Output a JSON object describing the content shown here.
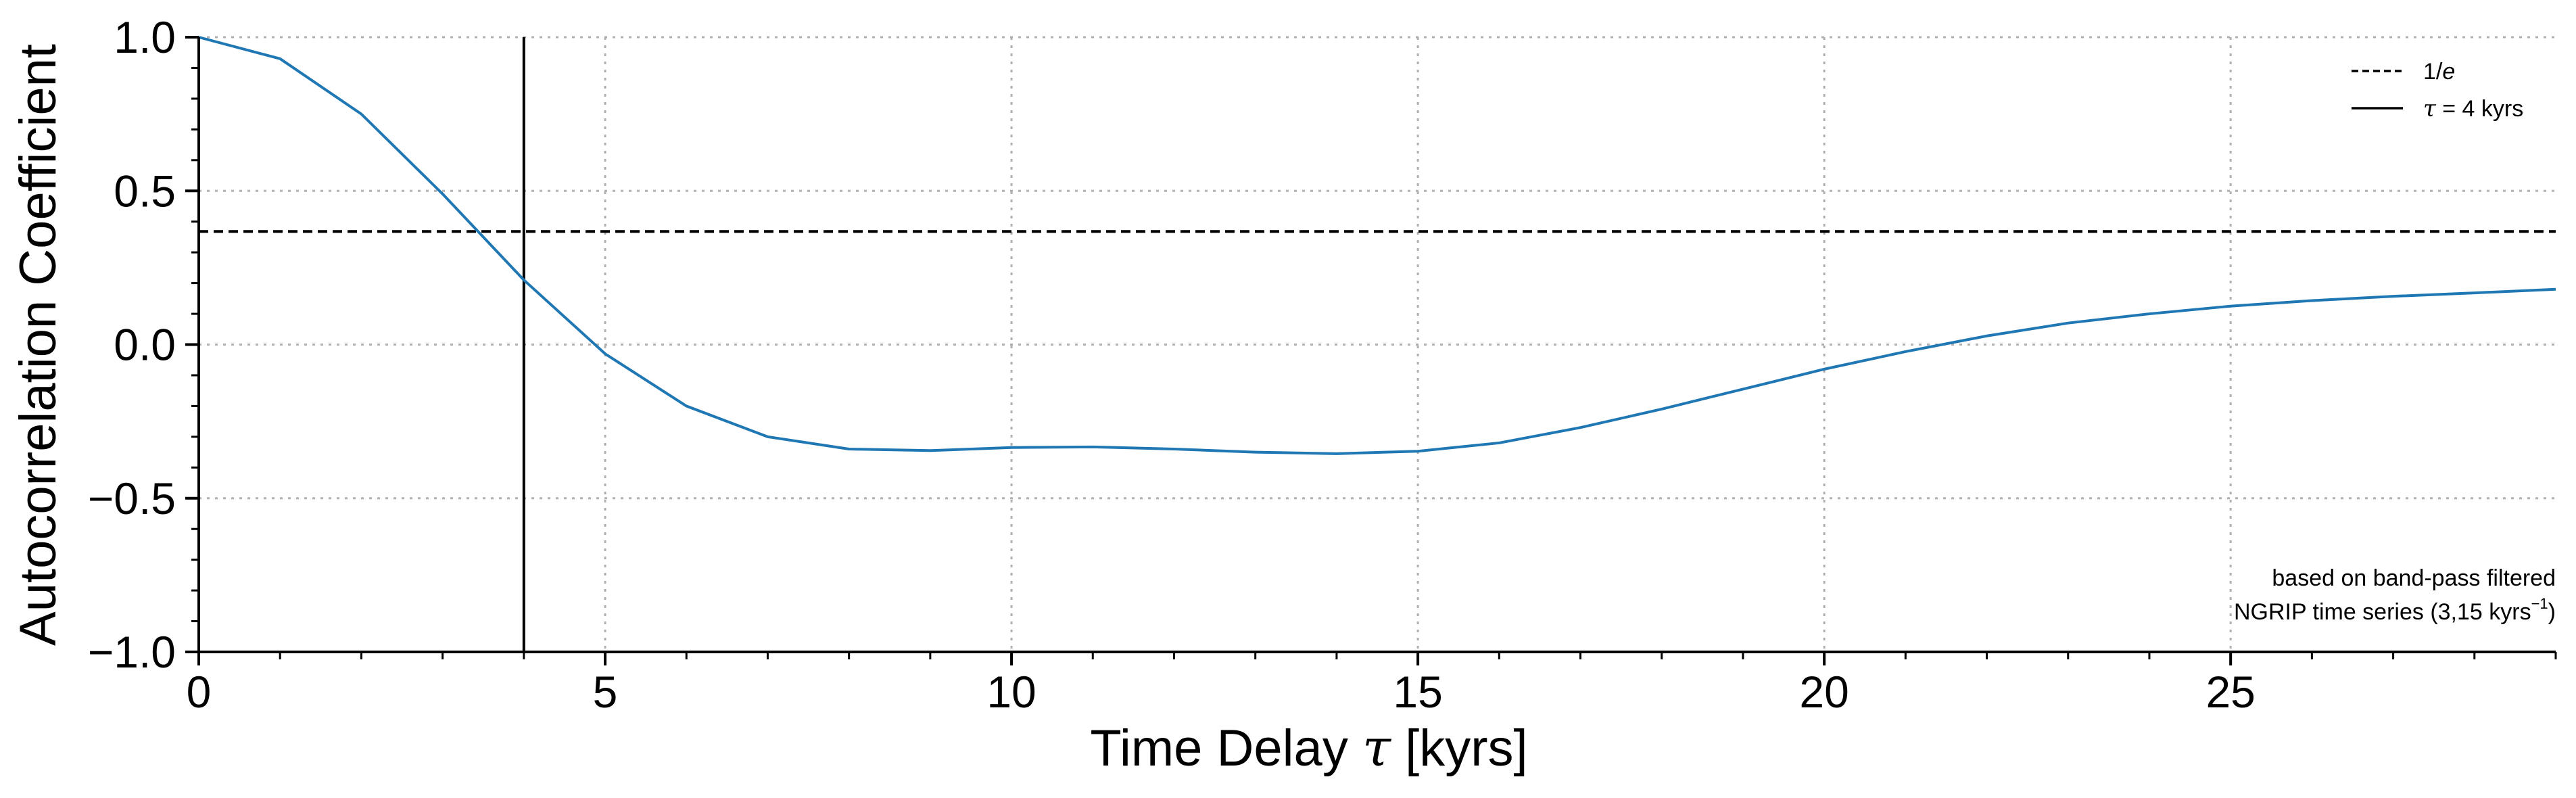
{
  "chart_data": {
    "type": "line",
    "title": "",
    "xlabel_main": "Time Delay ",
    "xlabel_symbol": "τ",
    "xlabel_unit": " [kyrs]",
    "ylabel": "Autocorrelation Coefficient",
    "xlim": [
      0,
      29
    ],
    "ylim": [
      -1.0,
      1.0
    ],
    "xticks": [
      0,
      5,
      10,
      15,
      20,
      25
    ],
    "xtick_labels": [
      "0",
      "5",
      "10",
      "15",
      "20",
      "25"
    ],
    "yticks": [
      1.0,
      0.5,
      0.0,
      -0.5,
      -1.0
    ],
    "ytick_labels": [
      "1.0",
      "0.5",
      "0.0",
      "−0.5",
      "−1.0"
    ],
    "x_minor_step": 1,
    "y_minor_step": 0.1,
    "grid": true,
    "series": [
      {
        "color": "#1f77b4",
        "x": [
          0,
          1,
          2,
          3,
          4,
          5,
          6,
          7,
          8,
          9,
          10,
          11,
          12,
          13,
          14,
          15,
          16,
          17,
          18,
          19,
          20,
          21,
          22,
          23,
          24,
          25,
          26,
          27,
          28,
          29
        ],
        "y": [
          1.0,
          0.93,
          0.75,
          0.49,
          0.21,
          -0.03,
          -0.2,
          -0.3,
          -0.34,
          -0.345,
          -0.335,
          -0.333,
          -0.34,
          -0.35,
          -0.355,
          -0.347,
          -0.32,
          -0.27,
          -0.21,
          -0.145,
          -0.08,
          -0.023,
          0.028,
          0.07,
          0.1,
          0.125,
          0.143,
          0.157,
          0.168,
          0.18
        ]
      }
    ],
    "reference_lines": [
      {
        "orientation": "horizontal",
        "value": 0.3679,
        "style": "dashed",
        "color": "#000000"
      },
      {
        "orientation": "vertical",
        "value": 4,
        "style": "solid",
        "color": "#000000"
      }
    ],
    "legend": {
      "placement": "top-right",
      "entries": [
        {
          "style": "dashed",
          "label": "1/",
          "label_italic": "e"
        },
        {
          "style": "solid",
          "label_italic": "τ",
          "label": " = 4 kyrs"
        }
      ]
    },
    "annotation": {
      "placement": "bottom-right",
      "line1": "based on band-pass filtered",
      "line2_main": "NGRIP time series (3,15 kyrs",
      "line2_sup": "−1",
      "line2_end": ")"
    }
  }
}
